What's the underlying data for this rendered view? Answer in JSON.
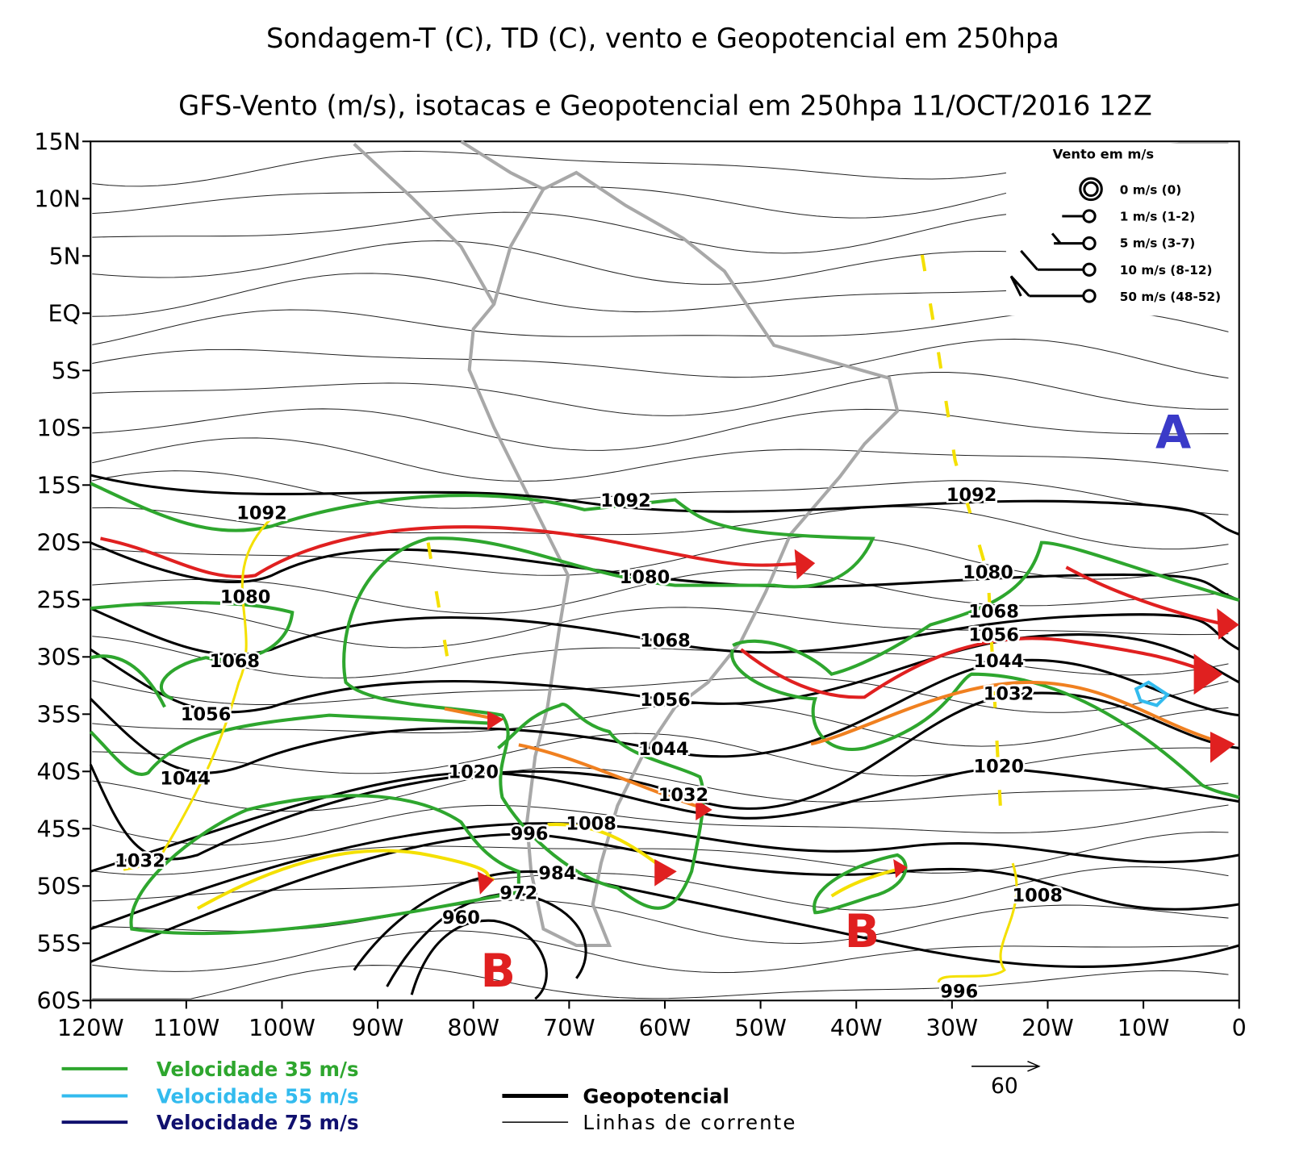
{
  "title": "Sondagem-T (C), TD (C), vento e Geopotencial em 250hpa",
  "subtitle": "GFS-Vento (m/s), isotacas e Geopotencial em 250hpa 11/OCT/2016 12Z",
  "lat_labels": [
    "15N",
    "10N",
    "5N",
    "EQ",
    "5S",
    "10S",
    "15S",
    "20S",
    "25S",
    "30S",
    "35S",
    "40S",
    "45S",
    "50S",
    "55S",
    "60S"
  ],
  "lon_labels": [
    "120W",
    "110W",
    "100W",
    "90W",
    "80W",
    "70W",
    "60W",
    "50W",
    "40W",
    "30W",
    "20W",
    "10W",
    "0"
  ],
  "contour_labels": [
    "1092",
    "1092",
    "1092",
    "1080",
    "1080",
    "1080",
    "1068",
    "1068",
    "1068",
    "1056",
    "1056",
    "1056",
    "1044",
    "1044",
    "1044",
    "1032",
    "1032",
    "1032",
    "1020",
    "1020",
    "1008",
    "1008",
    "996",
    "996",
    "984",
    "972",
    "960"
  ],
  "wind_legend": {
    "title": "Vento em m/s",
    "items": [
      "0 m/s (0)",
      "1 m/s (1-2)",
      "5 m/s (3-7)",
      "10 m/s (8-12)",
      "50 m/s (48-52)"
    ]
  },
  "systems": [
    "A",
    "B",
    "B"
  ],
  "reference_vector": "60",
  "legend": {
    "isotachs": [
      "Velocidade 35 m/s",
      "Velocidade 55 m/s",
      "Velocidade 75 m/s"
    ],
    "lines": [
      "Geopotencial",
      "Linhas de corrente"
    ]
  }
}
